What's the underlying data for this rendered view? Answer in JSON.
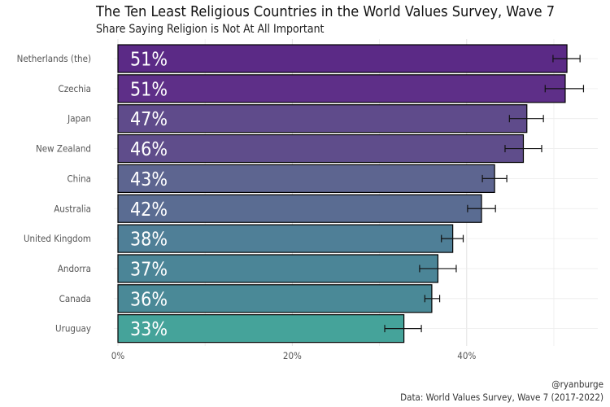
{
  "header": {
    "title": "The Ten Least Religious Countries in the World Values Survey, Wave 7",
    "subtitle": "Share Saying Religion is Not At All Important"
  },
  "footer": {
    "credit": "@ryanburge",
    "source": "Data: World Values Survey, Wave 7 (2017-2022)"
  },
  "chart_data": {
    "type": "bar",
    "orientation": "horizontal",
    "title": "The Ten Least Religious Countries in the World Values Survey, Wave 7",
    "subtitle": "Share Saying Religion is Not At All Important",
    "categories": [
      "Netherlands (the)",
      "Czechia",
      "Japan",
      "New Zealand",
      "China",
      "Australia",
      "United Kingdom",
      "Andorra",
      "Canada",
      "Uruguay"
    ],
    "values": [
      51.5,
      51.3,
      46.9,
      46.5,
      43.2,
      41.7,
      38.4,
      36.7,
      36.0,
      32.8
    ],
    "labels": [
      "51%",
      "51%",
      "47%",
      "46%",
      "43%",
      "42%",
      "38%",
      "37%",
      "36%",
      "33%"
    ],
    "error_low": [
      49.9,
      49.0,
      44.9,
      44.4,
      41.8,
      40.1,
      37.1,
      34.6,
      35.2,
      30.6
    ],
    "error_high": [
      53.0,
      53.4,
      48.8,
      48.6,
      44.6,
      43.3,
      39.6,
      38.8,
      36.9,
      34.8
    ],
    "x_ticks": [
      0,
      20,
      40
    ],
    "x_tick_labels": [
      "0%",
      "20%",
      "40%"
    ],
    "xlim": [
      0,
      55
    ],
    "grid": true,
    "colors": [
      "#5b2a86",
      "#5e2f88",
      "#5f4b8b",
      "#5f4d8b",
      "#5d6590",
      "#5a6c92",
      "#4f7f97",
      "#4b8597",
      "#4a8997",
      "#45a39a"
    ]
  }
}
